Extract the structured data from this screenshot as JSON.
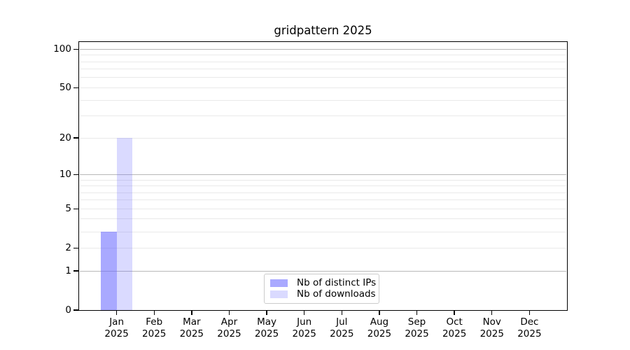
{
  "chart_data": {
    "type": "bar",
    "title": "gridpattern 2025",
    "xlabel": "",
    "ylabel": "",
    "scale": "log10(1+x)",
    "ylim": [
      0,
      113.6
    ],
    "grid": true,
    "legend_position": "lower center",
    "y_ticks": [
      {
        "value": 0,
        "label": "0"
      },
      {
        "value": 1,
        "label": "1"
      },
      {
        "value": 2,
        "label": "2"
      },
      {
        "value": 5,
        "label": "5"
      },
      {
        "value": 10,
        "label": "10"
      },
      {
        "value": 20,
        "label": "20"
      },
      {
        "value": 50,
        "label": "50"
      },
      {
        "value": 100,
        "label": "100"
      }
    ],
    "major_gridline_values": [
      1,
      10,
      100
    ],
    "minor_gridline_values": [
      2,
      3,
      4,
      5,
      6,
      7,
      8,
      9,
      20,
      30,
      40,
      50,
      60,
      70,
      80,
      90
    ],
    "x_ticks": [
      {
        "month": "Jan",
        "year": "2025"
      },
      {
        "month": "Feb",
        "year": "2025"
      },
      {
        "month": "Mar",
        "year": "2025"
      },
      {
        "month": "Apr",
        "year": "2025"
      },
      {
        "month": "May",
        "year": "2025"
      },
      {
        "month": "Jun",
        "year": "2025"
      },
      {
        "month": "Jul",
        "year": "2025"
      },
      {
        "month": "Aug",
        "year": "2025"
      },
      {
        "month": "Sep",
        "year": "2025"
      },
      {
        "month": "Oct",
        "year": "2025"
      },
      {
        "month": "Nov",
        "year": "2025"
      },
      {
        "month": "Dec",
        "year": "2025"
      }
    ],
    "series": [
      {
        "name": "Nb of distinct IPs",
        "color": "rgba(102,102,255,0.56)",
        "values": [
          3,
          0,
          0,
          0,
          0,
          0,
          0,
          0,
          0,
          0,
          0,
          0
        ]
      },
      {
        "name": "Nb of downloads",
        "color": "rgba(102,102,255,0.24)",
        "values": [
          20,
          0,
          0,
          0,
          0,
          0,
          0,
          0,
          0,
          0,
          0,
          0
        ]
      }
    ],
    "colors": {
      "major_grid": "#b8b8b8",
      "minor_grid": "#e9e9e9",
      "spine": "#000000",
      "background": "#ffffff",
      "legend_border": "#cccccc"
    }
  }
}
